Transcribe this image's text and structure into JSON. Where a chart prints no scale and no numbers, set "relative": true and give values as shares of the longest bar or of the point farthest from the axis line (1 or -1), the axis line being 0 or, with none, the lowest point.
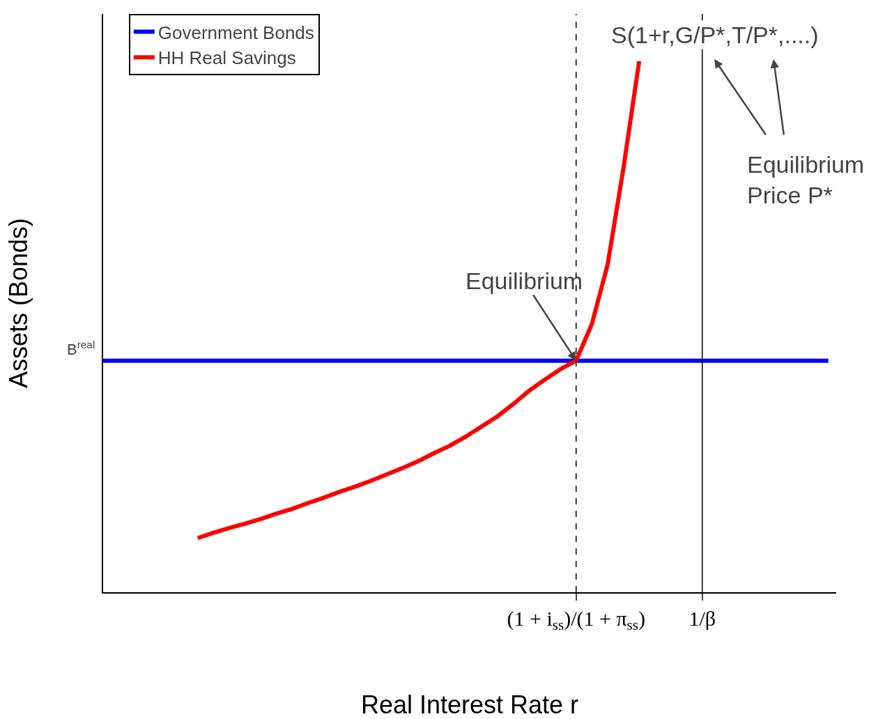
{
  "chart_data": {
    "type": "line",
    "relative": true,
    "xlabel": "Real Interest Rate r",
    "ylabel": "Assets (Bonds)",
    "categories": [
      null,
      null,
      null,
      null,
      null,
      null,
      null,
      null,
      null,
      null,
      null,
      null,
      null,
      null,
      null,
      null,
      null,
      null,
      null,
      null,
      null,
      null,
      null,
      null,
      null,
      null,
      null,
      null,
      null,
      null,
      "(1 + i$_{ss}$)/(1 + π$_{ss}$)",
      null,
      null,
      null,
      null,
      null,
      null,
      null,
      "1/β",
      null,
      null,
      null,
      null,
      null,
      null,
      null,
      null
    ],
    "legend": "top left",
    "grid": false,
    "series": [
      {
        "name": "Government Bonds",
        "color": "#0000ff",
        "values": [
          0.436,
          0.436,
          0.436,
          0.436,
          0.436,
          0.436,
          0.436,
          0.436,
          0.436,
          0.436,
          0.436,
          0.436,
          0.436,
          0.436,
          0.436,
          0.436,
          0.436,
          0.436,
          0.436,
          0.436,
          0.436,
          0.436,
          0.436,
          0.436,
          0.436,
          0.436,
          0.436,
          0.436,
          0.436,
          0.436,
          0.436,
          0.436,
          0.436,
          0.436,
          0.436,
          0.436,
          0.436,
          0.436,
          0.436,
          0.436,
          0.436,
          0.436,
          0.436,
          0.436,
          0.436,
          0.436,
          0.436
        ]
      },
      {
        "name": "HH Real Savings",
        "color": "#ff0000",
        "values": [
          null,
          null,
          null,
          null,
          null,
          null,
          0.102,
          0.112,
          0.121,
          0.129,
          0.138,
          0.148,
          0.157,
          0.168,
          0.178,
          0.189,
          0.199,
          0.21,
          0.222,
          0.234,
          0.247,
          0.262,
          0.276,
          0.293,
          0.312,
          0.331,
          0.354,
          0.379,
          0.4,
          0.42,
          0.436,
          0.505,
          0.617,
          0.798,
          1.0,
          null,
          null,
          null,
          null,
          null,
          null,
          null,
          null,
          null,
          null,
          null,
          null
        ]
      }
    ],
    "ref_lines": [
      {
        "axis": "x",
        "value": "(1 + i$_{ss}$)/(1 + π$_{ss}$)",
        "line_style": "dashed",
        "color": "#000000"
      },
      {
        "axis": "x",
        "value": "1/β",
        "line_style": "solid",
        "color": "#000000"
      }
    ],
    "annotations": [
      "B$^{real}$",
      {
        "text": "Equilibrium",
        "x": "(1 + i$_{ss}$)/(1 + π$_{ss}$)",
        "y": 0.436
      },
      "S(1+r,G/P*,T/P*,....)",
      "Equilibrium\nPrice P*"
    ]
  }
}
